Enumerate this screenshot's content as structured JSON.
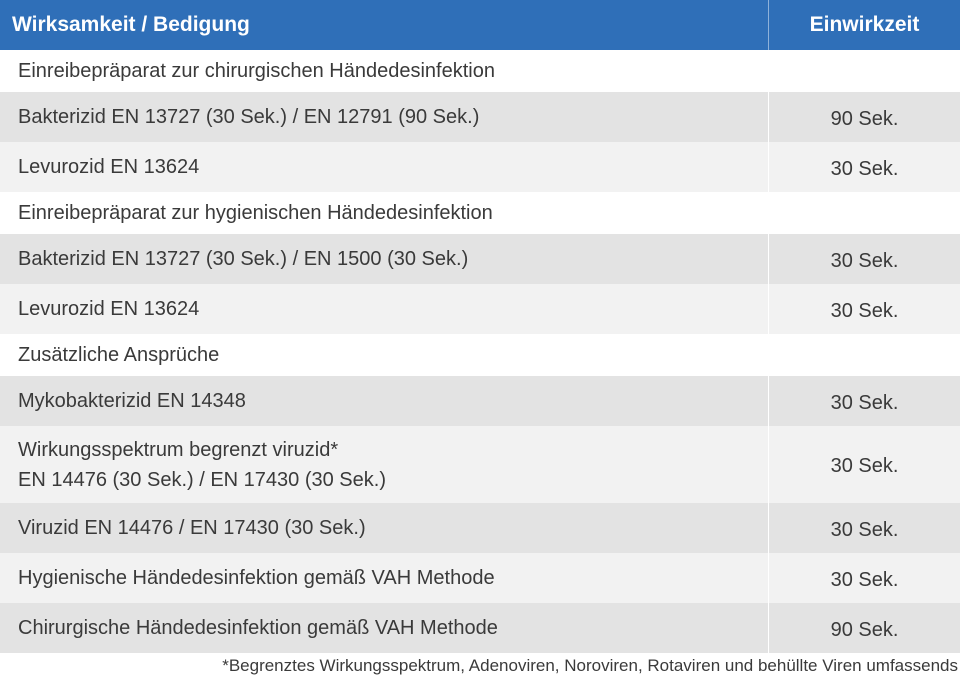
{
  "header": {
    "col1": "Wirksamkeit / Bedigung",
    "col2": "Einwirkzeit"
  },
  "sections": [
    {
      "title": "Einreibepräparat zur chirurgischen Händedesinfektion",
      "rows": [
        {
          "label": "Bakterizid EN 13727 (30 Sek.) / EN 12791 (90 Sek.)",
          "time": "90 Sek."
        },
        {
          "label": "Levurozid EN 13624",
          "time": "30 Sek."
        }
      ]
    },
    {
      "title": "Einreibepräparat zur hygienischen Händedesinfektion",
      "rows": [
        {
          "label": "Bakterizid EN 13727 (30 Sek.) / EN 1500 (30 Sek.)",
          "time": "30 Sek."
        },
        {
          "label": "Levurozid EN 13624",
          "time": "30 Sek."
        }
      ]
    },
    {
      "title": "Zusätzliche Ansprüche",
      "rows": [
        {
          "label": "Mykobakterizid EN 14348",
          "time": "30 Sek."
        },
        {
          "label_line1": "Wirkungsspektrum begrenzt viruzid*",
          "label_line2": "EN 14476 (30 Sek.) / EN 17430 (30 Sek.)",
          "time": "30 Sek."
        },
        {
          "label": "Viruzid EN 14476 / EN 17430 (30 Sek.)",
          "time": "30 Sek."
        },
        {
          "label": "Hygienische Händedesinfektion gemäß VAH Methode",
          "time": "30 Sek."
        },
        {
          "label": "Chirurgische Händedesinfektion gemäß VAH Methode",
          "time": "90 Sek."
        }
      ]
    }
  ],
  "footnote": "*Begrenztes Wirkungsspektrum, Adenoviren, Noroviren, Rotaviren und behüllte Viren umfassends",
  "colors": {
    "header_bg": "#2f6fb8",
    "row_shaded": "#e3e3e3",
    "row_light": "#f2f2f2"
  }
}
